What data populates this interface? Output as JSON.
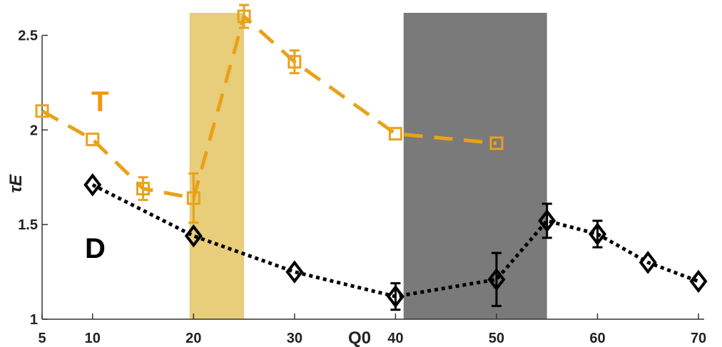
{
  "chart_data": {
    "type": "line",
    "xlabel": "Q0",
    "ylabel": "τE",
    "xlim": [
      5,
      70
    ],
    "ylim": [
      1,
      2.6
    ],
    "x_ticks": [
      5,
      10,
      20,
      30,
      40,
      50,
      60,
      70
    ],
    "y_ticks": [
      1,
      1.5,
      2,
      2.5
    ],
    "y_tick_labels": [
      "1",
      "1.5",
      "2",
      "2.5"
    ],
    "grid": false,
    "shaded_regions": [
      {
        "x0": 19.6,
        "x1": 25,
        "color": "#e8cd7a"
      },
      {
        "x0": 40.8,
        "x1": 55,
        "color": "#7a7a7a"
      }
    ],
    "series": [
      {
        "name": "T",
        "color": "#e8a21a",
        "label_color": "#f5960f",
        "marker": "square",
        "line_style": "dashed",
        "x": [
          5,
          10,
          15,
          20,
          25,
          30,
          40,
          50
        ],
        "y": [
          2.1,
          1.95,
          1.69,
          1.64,
          2.6,
          2.36,
          1.98,
          1.93
        ],
        "err": [
          0,
          0,
          0.06,
          0.13,
          0.06,
          0.06,
          0,
          0
        ]
      },
      {
        "name": "D",
        "color": "#000000",
        "label_color": "#000000",
        "marker": "diamond",
        "line_style": "dotted",
        "x": [
          10,
          20,
          30,
          40,
          50,
          55,
          60,
          65,
          70
        ],
        "y": [
          1.71,
          1.44,
          1.25,
          1.12,
          1.21,
          1.52,
          1.45,
          1.3,
          1.2
        ],
        "err": [
          0,
          0,
          0,
          0.07,
          0.14,
          0.09,
          0.07,
          0,
          0
        ]
      }
    ]
  }
}
